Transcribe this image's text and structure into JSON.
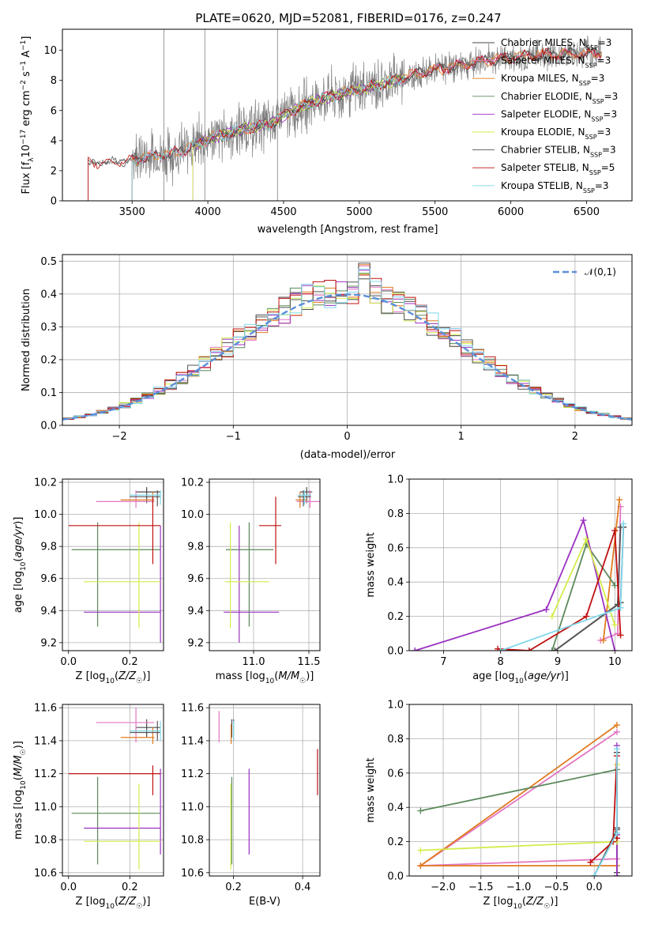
{
  "figure_title": "PLATE=0620, MJD=52081, FIBERID=0176, z=0.247",
  "models": [
    {
      "name": "Chabrier MILES",
      "nssp": "3",
      "color": "#4a4a4a"
    },
    {
      "name": "Salpeter MILES",
      "nssp": "3",
      "color": "#e377c2"
    },
    {
      "name": "Kroupa MILES",
      "nssp": "3",
      "color": "#e07b1f"
    },
    {
      "name": "Chabrier ELODIE",
      "nssp": "3",
      "color": "#5c8a5c"
    },
    {
      "name": "Salpeter ELODIE",
      "nssp": "3",
      "color": "#9b30c0"
    },
    {
      "name": "Kroupa ELODIE",
      "nssp": "3",
      "color": "#d4ec4a"
    },
    {
      "name": "Chabrier STELIB",
      "nssp": "3",
      "color": "#555555"
    },
    {
      "name": "Salpeter STELIB",
      "nssp": "5",
      "color": "#c01010"
    },
    {
      "name": "Kroupa STELIB",
      "nssp": "3",
      "color": "#7fd8ec"
    }
  ],
  "chart_data": [
    {
      "id": "spectrum",
      "type": "line",
      "xlabel": "wavelength [Angstrom, rest frame]",
      "ylabel": "Flux [f_λ 10^-17 erg cm^-2 s^-1 A^-1]",
      "xlim": [
        3040,
        6800
      ],
      "ylim": [
        0,
        11.4
      ],
      "xticks": [
        3500,
        4000,
        4500,
        5000,
        5500,
        6000,
        6500
      ],
      "yticks": [
        0,
        2,
        4,
        6,
        8,
        10
      ],
      "legend": "right",
      "data_color": "#808080",
      "continuum": [
        [
          3210,
          2.5
        ],
        [
          3400,
          2.6
        ],
        [
          3600,
          2.9
        ],
        [
          3800,
          3.2
        ],
        [
          4000,
          4.1
        ],
        [
          4200,
          4.7
        ],
        [
          4400,
          5.1
        ],
        [
          4600,
          6.2
        ],
        [
          4800,
          6.9
        ],
        [
          5000,
          7.4
        ],
        [
          5200,
          7.9
        ],
        [
          5400,
          8.5
        ],
        [
          5600,
          8.9
        ],
        [
          5800,
          9.3
        ],
        [
          6000,
          9.5
        ],
        [
          6200,
          9.7
        ],
        [
          6400,
          9.8
        ],
        [
          6600,
          9.8
        ]
      ],
      "model_ranges": [
        [
          3500,
          6600
        ],
        [
          3500,
          6600
        ],
        [
          3500,
          6600
        ],
        [
          3900,
          5300
        ],
        [
          3900,
          5300
        ],
        [
          3900,
          5300
        ],
        [
          3210,
          6600
        ],
        [
          3210,
          6600
        ],
        [
          3500,
          5300
        ]
      ]
    },
    {
      "id": "residuals",
      "type": "line",
      "xlabel": "(data-model)/error",
      "ylabel": "Normed distribution",
      "xlim": [
        -2.5,
        2.5
      ],
      "ylim": [
        0,
        0.52
      ],
      "xticks": [
        -2,
        -1,
        0,
        1,
        2
      ],
      "yticks": [
        0.0,
        0.1,
        0.2,
        0.3,
        0.4,
        0.5
      ],
      "reference": {
        "label": "𝒩(0,1)",
        "color": "#5b8fd9"
      },
      "legend": "top-right"
    },
    {
      "id": "age-vs-Z",
      "type": "scatter",
      "xlabel": "Z [log10(Z/Z☉)]",
      "ylabel": "age [log10(age/yr)]",
      "xlim": [
        -0.02,
        0.31
      ],
      "ylim": [
        9.15,
        10.22
      ],
      "xticks": [
        0.0,
        0.2
      ],
      "yticks": [
        9.2,
        9.4,
        9.6,
        9.8,
        10.0,
        10.2
      ],
      "points": [
        {
          "m": 0,
          "x": 0.255,
          "xe": [
            0.22,
            0.3
          ],
          "y": 10.14,
          "ye": [
            10.07,
            10.17
          ]
        },
        {
          "m": 1,
          "x": 0.22,
          "xe": [
            0.09,
            0.28
          ],
          "y": 10.08,
          "ye": [
            10.04,
            10.15
          ]
        },
        {
          "m": 2,
          "x": 0.275,
          "xe": [
            0.17,
            0.28
          ],
          "y": 10.09,
          "ye": [
            10.04,
            10.14
          ]
        },
        {
          "m": 3,
          "x": 0.095,
          "xe": [
            0.01,
            0.3
          ],
          "y": 9.78,
          "ye": [
            9.3,
            9.95
          ]
        },
        {
          "m": 4,
          "x": 0.3,
          "xe": [
            0.05,
            0.3
          ],
          "y": 9.39,
          "ye": [
            9.2,
            9.93
          ]
        },
        {
          "m": 5,
          "x": 0.23,
          "xe": [
            0.05,
            0.3
          ],
          "y": 9.58,
          "ye": [
            9.29,
            9.95
          ]
        },
        {
          "m": 6,
          "x": 0.29,
          "xe": [
            0.2,
            0.3
          ],
          "y": 10.11,
          "ye": [
            10.05,
            10.15
          ]
        },
        {
          "m": 7,
          "x": 0.275,
          "xe": [
            0.0,
            0.3
          ],
          "y": 9.93,
          "ye": [
            9.69,
            10.11
          ]
        },
        {
          "m": 8,
          "x": 0.3,
          "xe": [
            0.2,
            0.3
          ],
          "y": 10.12,
          "ye": [
            10.06,
            10.15
          ]
        }
      ]
    },
    {
      "id": "age-vs-mass",
      "type": "scatter",
      "xlabel": "mass [log10(M/M☉)]",
      "ylabel": "",
      "xlim": [
        10.6,
        11.6
      ],
      "ylim": [
        9.15,
        10.22
      ],
      "xticks": [
        11.0,
        11.5
      ],
      "yticks": [
        9.2,
        9.4,
        9.6,
        9.8,
        10.0,
        10.2
      ],
      "points": [
        {
          "m": 0,
          "x": 11.48,
          "xe": [
            11.42,
            11.53
          ],
          "y": 10.14,
          "ye": [
            10.07,
            10.17
          ]
        },
        {
          "m": 1,
          "x": 11.51,
          "xe": [
            11.39,
            11.6
          ],
          "y": 10.08,
          "ye": [
            10.04,
            10.15
          ]
        },
        {
          "m": 2,
          "x": 11.42,
          "xe": [
            11.38,
            11.48
          ],
          "y": 10.09,
          "ye": [
            10.04,
            10.14
          ]
        },
        {
          "m": 3,
          "x": 10.96,
          "xe": [
            10.75,
            11.18
          ],
          "y": 9.78,
          "ye": [
            9.3,
            9.95
          ]
        },
        {
          "m": 4,
          "x": 10.87,
          "xe": [
            10.73,
            11.23
          ],
          "y": 9.39,
          "ye": [
            9.2,
            9.93
          ]
        },
        {
          "m": 5,
          "x": 10.79,
          "xe": [
            10.74,
            11.14
          ],
          "y": 9.58,
          "ye": [
            9.29,
            9.95
          ]
        },
        {
          "m": 6,
          "x": 11.45,
          "xe": [
            11.4,
            11.52
          ],
          "y": 10.11,
          "ye": [
            10.05,
            10.15
          ]
        },
        {
          "m": 7,
          "x": 11.2,
          "xe": [
            11.05,
            11.25
          ],
          "y": 9.93,
          "ye": [
            9.69,
            10.11
          ]
        },
        {
          "m": 8,
          "x": 11.46,
          "xe": [
            11.4,
            11.52
          ],
          "y": 10.12,
          "ye": [
            10.06,
            10.15
          ]
        }
      ]
    },
    {
      "id": "weight-vs-age",
      "type": "line",
      "xlabel": "age [log10(age/yr)]",
      "ylabel": "mass weight",
      "xlim": [
        6.4,
        10.3
      ],
      "ylim": [
        0,
        1.0
      ],
      "xticks": [
        7,
        8,
        9,
        10
      ],
      "yticks": [
        0.0,
        0.2,
        0.4,
        0.6,
        0.8,
        1.0
      ],
      "series": [
        {
          "m": 0,
          "points": [
            [
              8.95,
              0.0
            ],
            [
              10.1,
              0.28
            ],
            [
              10.15,
              0.72
            ]
          ]
        },
        {
          "m": 1,
          "points": [
            [
              9.75,
              0.06
            ],
            [
              10.05,
              0.1
            ],
            [
              10.1,
              0.84
            ]
          ]
        },
        {
          "m": 2,
          "points": [
            [
              9.8,
              0.06
            ],
            [
              10.08,
              0.88
            ]
          ]
        },
        {
          "m": 3,
          "points": [
            [
              8.9,
              0.0
            ],
            [
              9.5,
              0.62
            ],
            [
              10.0,
              0.38
            ]
          ]
        },
        {
          "m": 4,
          "points": [
            [
              6.5,
              0.0
            ],
            [
              8.8,
              0.24
            ],
            [
              9.45,
              0.76
            ],
            [
              10.0,
              0.0
            ]
          ]
        },
        {
          "m": 5,
          "points": [
            [
              8.9,
              0.2
            ],
            [
              9.5,
              0.65
            ],
            [
              10.0,
              0.15
            ]
          ]
        },
        {
          "m": 6,
          "points": [
            [
              8.95,
              0.0
            ],
            [
              10.05,
              0.27
            ],
            [
              10.1,
              0.72
            ]
          ]
        },
        {
          "m": 7,
          "points": [
            [
              7.95,
              0.01
            ],
            [
              8.5,
              0.0
            ],
            [
              9.5,
              0.2
            ],
            [
              10.0,
              0.7
            ],
            [
              10.1,
              0.09
            ]
          ]
        },
        {
          "m": 8,
          "points": [
            [
              8.0,
              0.0
            ],
            [
              10.1,
              0.25
            ],
            [
              10.15,
              0.74
            ]
          ]
        }
      ]
    },
    {
      "id": "mass-vs-Z",
      "type": "scatter",
      "xlabel": "Z [log10(Z/Z☉)]",
      "ylabel": "mass [log10(M/M☉)]",
      "xlim": [
        -0.02,
        0.31
      ],
      "ylim": [
        10.58,
        11.62
      ],
      "xticks": [
        0.0,
        0.2
      ],
      "yticks": [
        10.6,
        10.8,
        11.0,
        11.2,
        11.4,
        11.6
      ],
      "points": [
        {
          "m": 0,
          "x": 0.255,
          "xe": [
            0.22,
            0.3
          ],
          "y": 11.48,
          "ye": [
            11.42,
            11.53
          ]
        },
        {
          "m": 1,
          "x": 0.22,
          "xe": [
            0.09,
            0.28
          ],
          "y": 11.51,
          "ye": [
            11.39,
            11.6
          ]
        },
        {
          "m": 2,
          "x": 0.275,
          "xe": [
            0.17,
            0.28
          ],
          "y": 11.42,
          "ye": [
            11.38,
            11.48
          ]
        },
        {
          "m": 3,
          "x": 0.095,
          "xe": [
            0.01,
            0.3
          ],
          "y": 10.96,
          "ye": [
            10.65,
            11.18
          ]
        },
        {
          "m": 4,
          "x": 0.3,
          "xe": [
            0.05,
            0.3
          ],
          "y": 10.87,
          "ye": [
            10.71,
            11.23
          ]
        },
        {
          "m": 5,
          "x": 0.23,
          "xe": [
            0.05,
            0.3
          ],
          "y": 10.79,
          "ye": [
            10.62,
            11.14
          ]
        },
        {
          "m": 6,
          "x": 0.29,
          "xe": [
            0.2,
            0.3
          ],
          "y": 11.45,
          "ye": [
            11.4,
            11.52
          ]
        },
        {
          "m": 7,
          "x": 0.275,
          "xe": [
            0.0,
            0.3
          ],
          "y": 11.2,
          "ye": [
            11.07,
            11.25
          ]
        },
        {
          "m": 8,
          "x": 0.3,
          "xe": [
            0.2,
            0.3
          ],
          "y": 11.46,
          "ye": [
            11.4,
            11.52
          ]
        }
      ]
    },
    {
      "id": "mass-vs-EBV",
      "type": "scatter",
      "xlabel": "E(B-V)",
      "ylabel": "",
      "xlim": [
        0.13,
        0.45
      ],
      "ylim": [
        10.58,
        11.62
      ],
      "xticks": [
        0.2,
        0.4
      ],
      "yticks": [
        10.6,
        10.8,
        11.0,
        11.2,
        11.4,
        11.6
      ],
      "points": [
        {
          "m": 0,
          "x": 0.195,
          "y": 11.48,
          "ye": [
            11.42,
            11.53
          ]
        },
        {
          "m": 1,
          "x": 0.158,
          "y": 11.51,
          "ye": [
            11.39,
            11.58
          ]
        },
        {
          "m": 2,
          "x": 0.193,
          "y": 11.42,
          "ye": [
            11.38,
            11.5
          ]
        },
        {
          "m": 3,
          "x": 0.195,
          "y": 10.96,
          "ye": [
            10.65,
            11.18
          ]
        },
        {
          "m": 4,
          "x": 0.245,
          "y": 10.87,
          "ye": [
            10.71,
            11.23
          ]
        },
        {
          "m": 5,
          "x": 0.192,
          "y": 10.79,
          "ye": [
            10.62,
            11.14
          ]
        },
        {
          "m": 6,
          "x": 0.2,
          "y": 11.45,
          "ye": [
            11.4,
            11.53
          ]
        },
        {
          "m": 7,
          "x": 0.443,
          "y": 11.2,
          "ye": [
            11.07,
            11.35
          ]
        },
        {
          "m": 8,
          "x": 0.2,
          "y": 11.46,
          "ye": [
            11.4,
            11.52
          ]
        }
      ]
    },
    {
      "id": "weight-vs-Z",
      "type": "line",
      "xlabel": "Z [log10(Z/Z☉)]",
      "ylabel": "mass weight",
      "xlim": [
        -2.45,
        0.5
      ],
      "ylim": [
        0,
        1.0
      ],
      "xticks": [
        -2.0,
        -1.5,
        -1.0,
        -0.5,
        0.0
      ],
      "yticks": [
        0.0,
        0.2,
        0.4,
        0.6,
        0.8,
        1.0
      ],
      "series": [
        {
          "m": 0,
          "points": [
            [
              0.3,
              0.02
            ],
            [
              0.3,
              0.28
            ],
            [
              0.3,
              0.72
            ]
          ]
        },
        {
          "m": 1,
          "points": [
            [
              0.3,
              0.1
            ],
            [
              -2.3,
              0.06
            ],
            [
              0.3,
              0.84
            ]
          ]
        },
        {
          "m": 2,
          "points": [
            [
              0.3,
              0.06
            ],
            [
              -2.3,
              0.06
            ],
            [
              0.3,
              0.88
            ]
          ]
        },
        {
          "m": 3,
          "points": [
            [
              -2.3,
              0.38
            ],
            [
              0.3,
              0.62
            ],
            [
              0.3,
              0.0
            ]
          ]
        },
        {
          "m": 4,
          "points": [
            [
              0.3,
              0.0
            ],
            [
              0.3,
              0.24
            ],
            [
              0.3,
              0.76
            ]
          ]
        },
        {
          "m": 5,
          "points": [
            [
              -2.3,
              0.15
            ],
            [
              0.3,
              0.2
            ],
            [
              0.3,
              0.65
            ]
          ]
        },
        {
          "m": 6,
          "points": [
            [
              0.0,
              0.0
            ],
            [
              0.3,
              0.27
            ],
            [
              0.3,
              0.72
            ]
          ]
        },
        {
          "m": 7,
          "points": [
            [
              -0.05,
              0.08
            ],
            [
              0.25,
              0.2
            ],
            [
              0.3,
              0.7
            ],
            [
              0.3,
              0.22
            ]
          ]
        },
        {
          "m": 8,
          "points": [
            [
              0.0,
              0.0
            ],
            [
              0.3,
              0.25
            ],
            [
              0.3,
              0.74
            ]
          ]
        }
      ]
    }
  ]
}
